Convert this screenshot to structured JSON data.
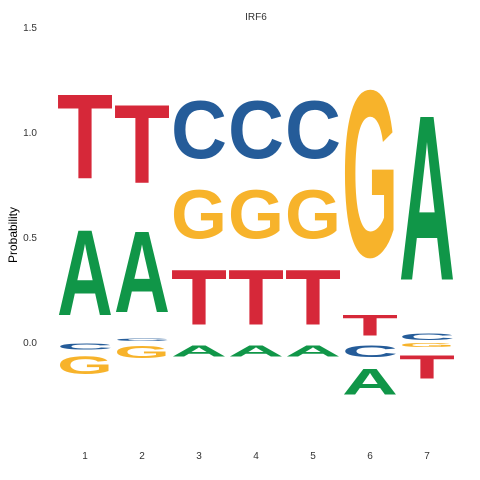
{
  "chart_data": {
    "type": "sequence-logo",
    "title": "IRF6",
    "ylabel": "Probability",
    "ylim": [
      -0.36,
      1.5
    ],
    "yticks": [
      {
        "value": 0.0,
        "label": "0.0"
      },
      {
        "value": 0.5,
        "label": "0.5"
      },
      {
        "value": 1.0,
        "label": "1.0"
      },
      {
        "value": 1.5,
        "label": "1.5"
      }
    ],
    "grid": false,
    "colors": {
      "A": "#109648",
      "C": "#255C99",
      "G": "#F7B32B",
      "T": "#D62839"
    },
    "positions": [
      {
        "label": "1",
        "positive": [
          {
            "letter": "A",
            "value": 0.655
          },
          {
            "letter": "T",
            "value": 0.645
          }
        ],
        "negative": [
          {
            "letter": "C",
            "value": 0.045
          },
          {
            "letter": "G",
            "value": 0.135
          }
        ]
      },
      {
        "label": "2",
        "positive": [
          {
            "letter": "C",
            "value": 0.02
          },
          {
            "letter": "A",
            "value": 0.62
          },
          {
            "letter": "T",
            "value": 0.6
          }
        ],
        "negative": [
          {
            "letter": "G",
            "value": 0.095
          }
        ]
      },
      {
        "label": "3",
        "positive": [
          {
            "letter": "T",
            "value": 0.42
          },
          {
            "letter": "G",
            "value": 0.37
          },
          {
            "letter": "C",
            "value": 0.44
          }
        ],
        "negative": [
          {
            "letter": "A",
            "value": 0.085
          }
        ]
      },
      {
        "label": "4",
        "positive": [
          {
            "letter": "T",
            "value": 0.42
          },
          {
            "letter": "G",
            "value": 0.37
          },
          {
            "letter": "C",
            "value": 0.44
          }
        ],
        "negative": [
          {
            "letter": "A",
            "value": 0.085
          }
        ]
      },
      {
        "label": "5",
        "positive": [
          {
            "letter": "T",
            "value": 0.42
          },
          {
            "letter": "G",
            "value": 0.37
          },
          {
            "letter": "C",
            "value": 0.44
          }
        ],
        "negative": [
          {
            "letter": "A",
            "value": 0.085
          }
        ]
      },
      {
        "label": "6",
        "positive": [
          {
            "letter": "T",
            "value": 0.16
          },
          {
            "letter": "G",
            "value": 1.27
          }
        ],
        "negative": [
          {
            "letter": "C",
            "value": 0.09
          },
          {
            "letter": "A",
            "value": 0.2
          }
        ]
      },
      {
        "label": "7",
        "positive": [
          {
            "letter": "C",
            "value": 0.05
          },
          {
            "letter": "A",
            "value": 1.26
          }
        ],
        "negative": [
          {
            "letter": "G",
            "value": 0.03
          },
          {
            "letter": "T",
            "value": 0.18
          }
        ]
      }
    ]
  }
}
